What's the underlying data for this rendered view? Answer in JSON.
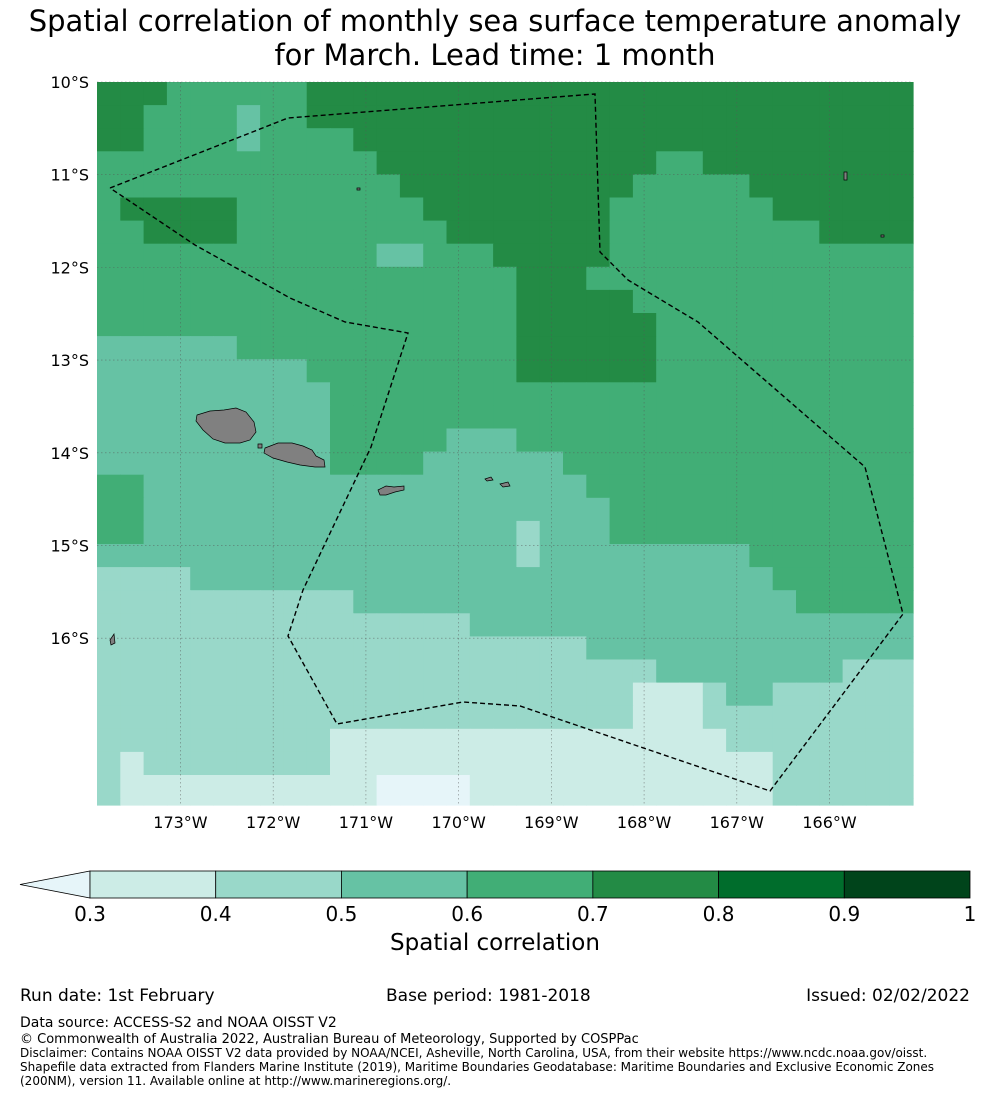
{
  "title": {
    "line1": "Spatial correlation of monthly sea surface temperature anomaly",
    "line2": "for March. Lead time: 1 month"
  },
  "map": {
    "lon_range": [
      -173.9,
      -165.1
    ],
    "lat_range": [
      -17.8,
      -10.0
    ],
    "lat_ticks": [
      {
        "value": -10,
        "label": "10°S"
      },
      {
        "value": -11,
        "label": "11°S"
      },
      {
        "value": -12,
        "label": "12°S"
      },
      {
        "value": -13,
        "label": "13°S"
      },
      {
        "value": -14,
        "label": "14°S"
      },
      {
        "value": -15,
        "label": "15°S"
      },
      {
        "value": -16,
        "label": "16°S"
      }
    ],
    "lon_ticks": [
      {
        "value": -173,
        "label": "173°W"
      },
      {
        "value": -172,
        "label": "172°W"
      },
      {
        "value": -171,
        "label": "171°W"
      },
      {
        "value": -170,
        "label": "170°W"
      },
      {
        "value": -169,
        "label": "169°W"
      },
      {
        "value": -168,
        "label": "168°W"
      },
      {
        "value": -167,
        "label": "167°W"
      },
      {
        "value": -166,
        "label": "166°W"
      }
    ],
    "land_color": "#808080",
    "grid_color": "#555555",
    "boundary_style": "dashed"
  },
  "colorbar": {
    "label": "Spatial correlation",
    "ticks": [
      "0.3",
      "0.4",
      "0.5",
      "0.6",
      "0.7",
      "0.8",
      "0.9",
      "1"
    ],
    "under_color": "#e6f5f9",
    "bins": [
      {
        "min": 0.3,
        "max": 0.4,
        "color": "#ccece6"
      },
      {
        "min": 0.4,
        "max": 0.5,
        "color": "#99d8c9"
      },
      {
        "min": 0.5,
        "max": 0.6,
        "color": "#66c2a4"
      },
      {
        "min": 0.6,
        "max": 0.7,
        "color": "#41ae76"
      },
      {
        "min": 0.7,
        "max": 0.8,
        "color": "#238b45"
      },
      {
        "min": 0.8,
        "max": 0.9,
        "color": "#006d2c"
      },
      {
        "min": 0.9,
        "max": 1.0,
        "color": "#00441b"
      }
    ]
  },
  "footer": {
    "run_date": "Run date: 1st February",
    "base_period": "Base period: 1981-2018",
    "issued": "Issued: 02/02/2022",
    "data_source": "Data source: ACCESS-S2 and NOAA OISST V2",
    "copyright": "© Commonwealth of Australia 2022, Australian Bureau of Meteorology, Supported by COSPPac",
    "disclaimer": "Disclaimer: Contains NOAA OISST V2 data provided by NOAA/NCEI, Asheville, North Carolina, USA, from their website https://www.ncdc.noaa.gov/oisst. Shapefile data extracted from Flanders Marine Institute (2019), Maritime Boundaries Geodatabase: Maritime Boundaries and Exclusive Economic Zones (200NM), version 11. Available online at http://www.marineregions.org/."
  }
}
